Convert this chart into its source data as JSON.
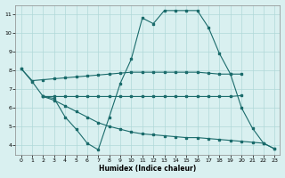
{
  "xlabel": "Humidex (Indice chaleur)",
  "xlim": [
    -0.5,
    23.5
  ],
  "ylim": [
    3.5,
    11.5
  ],
  "yticks": [
    4,
    5,
    6,
    7,
    8,
    9,
    10,
    11
  ],
  "xticks": [
    0,
    1,
    2,
    3,
    4,
    5,
    6,
    7,
    8,
    9,
    10,
    11,
    12,
    13,
    14,
    15,
    16,
    17,
    18,
    19,
    20,
    21,
    22,
    23
  ],
  "line_color": "#1a6b6b",
  "bg_color": "#d9f0f0",
  "grid_color": "#b0d8d8",
  "line1_x": [
    0,
    1,
    2,
    3,
    4,
    5,
    6,
    7,
    8,
    9,
    10,
    11,
    12,
    13,
    14,
    15,
    16,
    17,
    18,
    19,
    20,
    21,
    22,
    23
  ],
  "line1_y": [
    8.1,
    7.4,
    6.6,
    6.5,
    5.5,
    4.85,
    4.1,
    3.75,
    5.5,
    7.3,
    8.6,
    10.8,
    10.5,
    11.2,
    11.2,
    11.2,
    11.2,
    10.3,
    8.9,
    7.8,
    6.0,
    4.9,
    4.1,
    3.8
  ],
  "line2_x": [
    0,
    1,
    2,
    3,
    4,
    5,
    6,
    7,
    8,
    9,
    10,
    11,
    12,
    13,
    14,
    15,
    16,
    17,
    18,
    19,
    20
  ],
  "line2_y": [
    8.1,
    7.45,
    7.5,
    7.55,
    7.6,
    7.65,
    7.7,
    7.75,
    7.8,
    7.85,
    7.9,
    7.9,
    7.9,
    7.9,
    7.9,
    7.9,
    7.9,
    7.85,
    7.8,
    7.8,
    7.8
  ],
  "line3_x": [
    2,
    3,
    4,
    5,
    6,
    7,
    8,
    9,
    10,
    11,
    12,
    13,
    14,
    15,
    16,
    17,
    18,
    19,
    20
  ],
  "line3_y": [
    6.6,
    6.6,
    6.6,
    6.6,
    6.6,
    6.6,
    6.6,
    6.6,
    6.6,
    6.6,
    6.6,
    6.6,
    6.6,
    6.6,
    6.6,
    6.6,
    6.6,
    6.6,
    6.65
  ],
  "line4_x": [
    2,
    3,
    4,
    5,
    6,
    7,
    8,
    9,
    10,
    11,
    12,
    13,
    14,
    15,
    16,
    17,
    18,
    19,
    20,
    21,
    22,
    23
  ],
  "line4_y": [
    6.6,
    6.4,
    6.1,
    5.8,
    5.5,
    5.2,
    5.0,
    4.85,
    4.7,
    4.6,
    4.55,
    4.5,
    4.45,
    4.4,
    4.4,
    4.35,
    4.3,
    4.25,
    4.2,
    4.15,
    4.1,
    3.8
  ]
}
